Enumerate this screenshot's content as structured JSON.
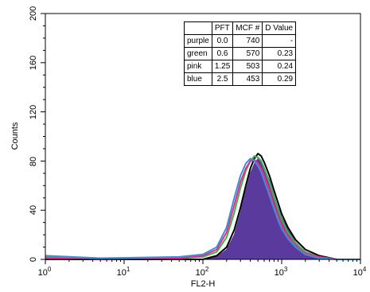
{
  "chart_data": {
    "type": "area",
    "xlabel": "FL2-H",
    "ylabel": "Counts",
    "xscale": "log",
    "xlim": [
      1,
      10000
    ],
    "ylim": [
      0,
      200
    ],
    "x_ticks": [
      {
        "base": "10",
        "exp": "0"
      },
      {
        "base": "10",
        "exp": "1"
      },
      {
        "base": "10",
        "exp": "2"
      },
      {
        "base": "10",
        "exp": "3"
      },
      {
        "base": "10",
        "exp": "4"
      }
    ],
    "y_ticks": [
      "0",
      "40",
      "80",
      "120",
      "160",
      "200"
    ],
    "series": [
      {
        "color": "#5b3a9e",
        "fill": true,
        "x": [
          1,
          5,
          50,
          100,
          150,
          200,
          250,
          300,
          350,
          400,
          450,
          500,
          550,
          600,
          700,
          800,
          900,
          1000,
          1200,
          1500,
          2000,
          3000,
          5000,
          10000
        ],
        "y": [
          0,
          0,
          0,
          0,
          2,
          8,
          20,
          38,
          56,
          70,
          78,
          82,
          80,
          75,
          64,
          52,
          42,
          34,
          24,
          14,
          6,
          2,
          0,
          0
        ]
      },
      {
        "color": "#000000",
        "fill": false,
        "x": [
          1,
          5,
          50,
          100,
          150,
          200,
          250,
          300,
          350,
          400,
          450,
          500,
          550,
          600,
          700,
          800,
          900,
          1000,
          1200,
          1500,
          2000,
          3000,
          5000,
          10000
        ],
        "y": [
          0,
          0,
          0,
          0,
          3,
          10,
          24,
          42,
          60,
          74,
          82,
          86,
          84,
          79,
          68,
          56,
          46,
          37,
          26,
          16,
          8,
          3,
          0,
          0
        ]
      },
      {
        "color": "#3cb34a",
        "fill": false,
        "x": [
          1,
          5,
          50,
          100,
          150,
          200,
          250,
          300,
          350,
          400,
          450,
          500,
          550,
          600,
          700,
          800,
          900,
          1000,
          1200,
          1500,
          2000,
          3000,
          5000,
          10000
        ],
        "y": [
          2,
          0,
          1,
          2,
          6,
          18,
          38,
          58,
          72,
          80,
          84,
          83,
          80,
          74,
          62,
          50,
          40,
          32,
          22,
          13,
          6,
          2,
          0,
          0
        ]
      },
      {
        "color": "#ec2a8c",
        "fill": false,
        "x": [
          1,
          5,
          50,
          100,
          150,
          200,
          250,
          300,
          350,
          400,
          450,
          500,
          550,
          600,
          700,
          800,
          900,
          1000,
          1200,
          1500,
          2000,
          3000,
          5000,
          10000
        ],
        "y": [
          1,
          0,
          1,
          3,
          8,
          22,
          44,
          63,
          74,
          80,
          81,
          78,
          74,
          68,
          56,
          44,
          35,
          28,
          19,
          11,
          5,
          2,
          0,
          0
        ]
      },
      {
        "color": "#3b8fd9",
        "fill": false,
        "x": [
          1,
          5,
          50,
          100,
          150,
          200,
          250,
          300,
          350,
          400,
          450,
          500,
          550,
          600,
          700,
          800,
          900,
          1000,
          1200,
          1500,
          2000,
          3000,
          5000,
          10000
        ],
        "y": [
          3,
          1,
          2,
          4,
          10,
          26,
          50,
          68,
          78,
          82,
          80,
          76,
          71,
          64,
          52,
          41,
          32,
          25,
          17,
          10,
          4,
          1,
          0,
          0
        ]
      }
    ],
    "table": {
      "headers": [
        "",
        "PFT",
        "MCF #",
        "D Value"
      ],
      "rows": [
        [
          "purple",
          "0.0",
          "740",
          "-"
        ],
        [
          "green",
          "0.6",
          "570",
          "0.23"
        ],
        [
          "pink",
          "1.25",
          "503",
          "0.24"
        ],
        [
          "blue",
          "2.5",
          "453",
          "0.29"
        ]
      ]
    }
  }
}
